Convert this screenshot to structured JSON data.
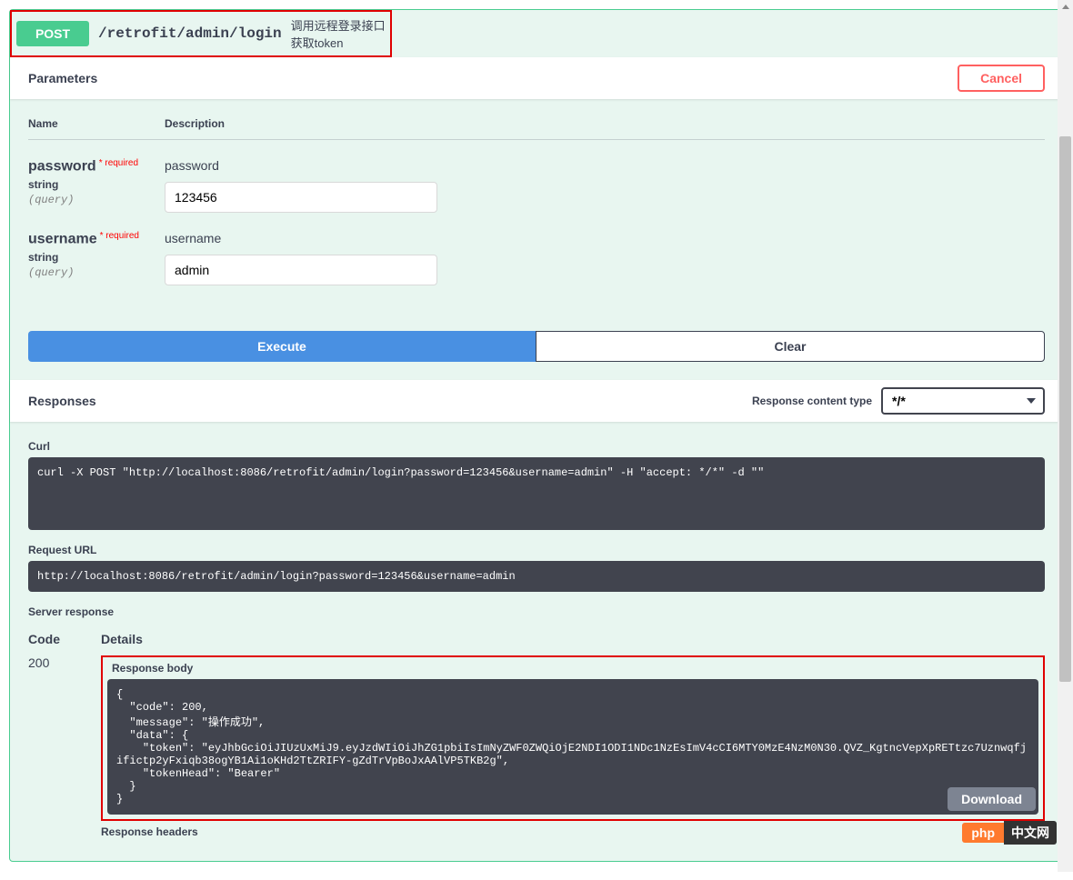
{
  "summary": {
    "method": "POST",
    "path": "/retrofit/admin/login",
    "description": "调用远程登录接口获取token"
  },
  "paramsSection": {
    "title": "Parameters",
    "cancel": "Cancel",
    "headers": {
      "name": "Name",
      "description": "Description"
    }
  },
  "params": [
    {
      "name": "password",
      "required": "required",
      "type": "string",
      "in": "(query)",
      "description": "password",
      "value": "123456"
    },
    {
      "name": "username",
      "required": "required",
      "type": "string",
      "in": "(query)",
      "description": "username",
      "value": "admin"
    }
  ],
  "buttons": {
    "execute": "Execute",
    "clear": "Clear",
    "download": "Download"
  },
  "responsesSection": {
    "title": "Responses",
    "contentTypeLabel": "Response content type",
    "contentTypeValue": "*/*"
  },
  "curl": {
    "label": "Curl",
    "value": "curl -X POST \"http://localhost:8086/retrofit/admin/login?password=123456&username=admin\" -H \"accept: */*\" -d \"\""
  },
  "requestUrl": {
    "label": "Request URL",
    "value": "http://localhost:8086/retrofit/admin/login?password=123456&username=admin"
  },
  "serverResponse": {
    "label": "Server response",
    "codeHeader": "Code",
    "detailsHeader": "Details",
    "code": "200",
    "bodyLabel": "Response body",
    "body": "{\n  \"code\": 200,\n  \"message\": \"操作成功\",\n  \"data\": {\n    \"token\": \"eyJhbGciOiJIUzUxMiJ9.eyJzdWIiOiJhZG1pbiIsImNyZWF0ZWQiOjE2NDI1ODI1NDc1NzEsImV4cCI6MTY0MzE4NzM0N30.QVZ_KgtncVepXpRETtzc7Uznwqfjifictp2yFxiqb38ogYB1Ai1oKHd2TtZRIFY-gZdTrVpBoJxAAlVP5TKB2g\",\n    \"tokenHead\": \"Bearer\"\n  }\n}",
    "headersLabel": "Response headers"
  },
  "watermark": {
    "left": "php",
    "right": "中文网"
  },
  "colors": {
    "post_bg": "#49cc90",
    "opblock_bg": "#e8f6f0",
    "cancel": "#ff6060",
    "execute": "#4990e2",
    "code_bg": "#41444e",
    "highlight_border": "#e00000"
  }
}
